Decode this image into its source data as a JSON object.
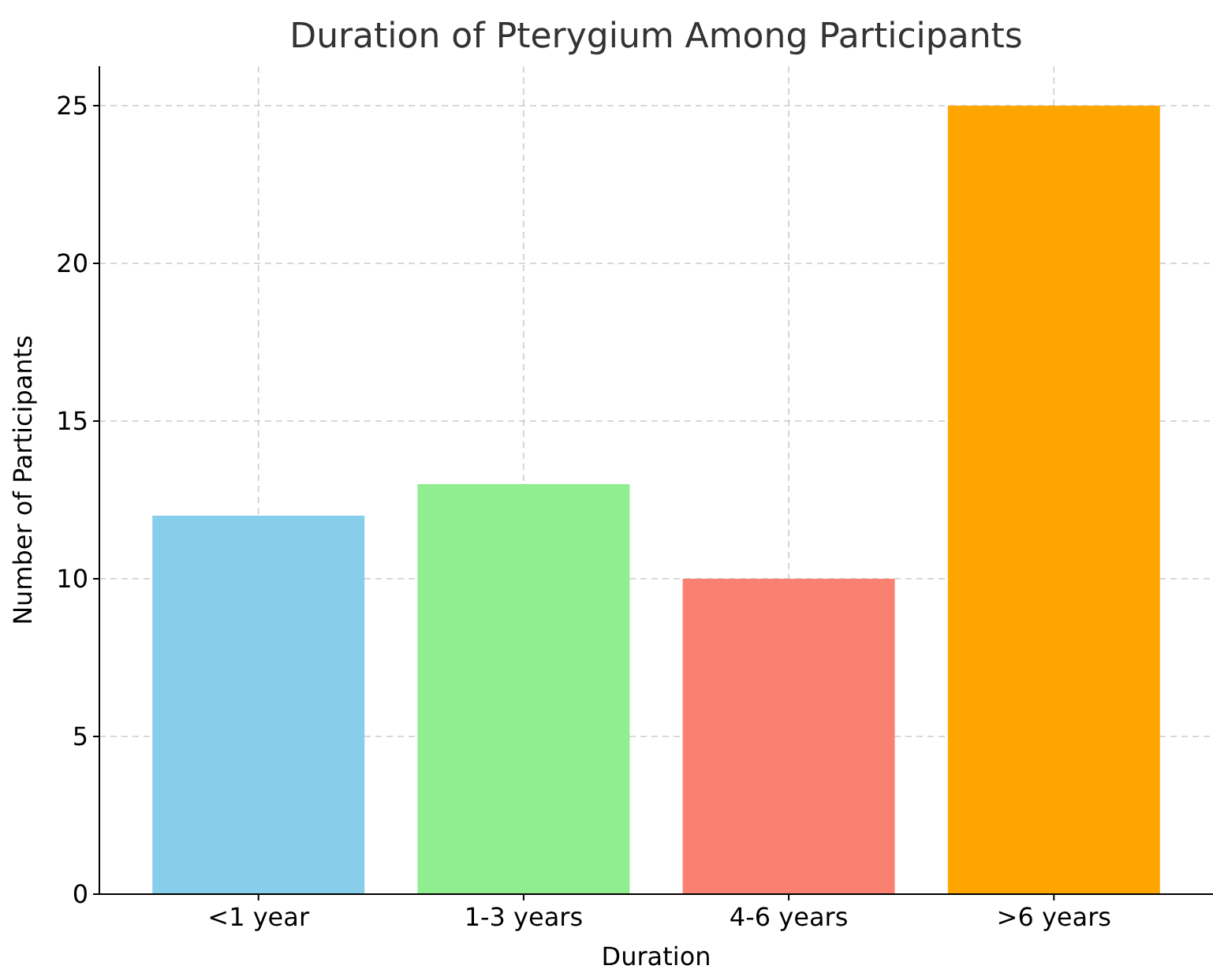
{
  "chart_data": {
    "type": "bar",
    "title": "Duration of Pterygium Among Participants",
    "xlabel": "Duration",
    "ylabel": "Number of Participants",
    "categories": [
      "<1 year",
      "1-3 years",
      "4-6 years",
      ">6 years"
    ],
    "values": [
      12,
      13,
      10,
      25
    ],
    "colors": [
      "#87ceeb",
      "#90ee90",
      "#fa8072",
      "#ffa500"
    ],
    "ylim": [
      0,
      26.25
    ],
    "yticks": [
      0,
      5,
      10,
      15,
      20,
      25
    ],
    "grid": true
  }
}
